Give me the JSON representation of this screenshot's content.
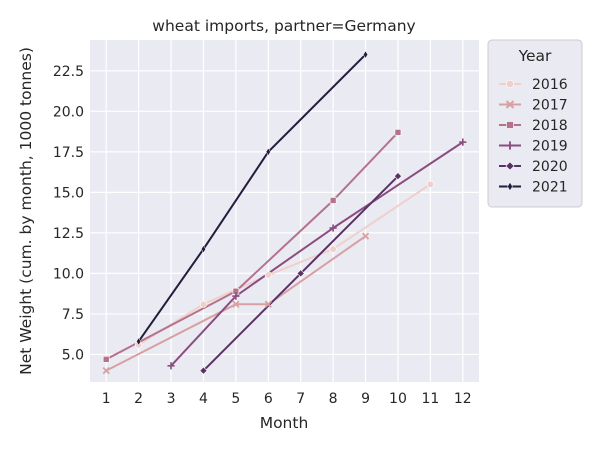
{
  "chart_data": {
    "type": "line",
    "title": "wheat imports, partner=Germany",
    "xlabel": "Month",
    "ylabel": "Net Weight (cum. by month, 1000 tonnes)",
    "xlim": [
      0.5,
      12.5
    ],
    "ylim": [
      3.3,
      24.4
    ],
    "xticks": [
      1,
      2,
      3,
      4,
      5,
      6,
      7,
      8,
      9,
      10,
      11,
      12
    ],
    "yticks": [
      5.0,
      7.5,
      10.0,
      12.5,
      15.0,
      17.5,
      20.0,
      22.5
    ],
    "ytick_labels": [
      "5.0",
      "7.5",
      "10.0",
      "12.5",
      "15.0",
      "17.5",
      "20.0",
      "22.5"
    ],
    "grid": true,
    "background": "#eaeaf2",
    "legend": {
      "title": "Year",
      "placement": "outside-right-top"
    },
    "series": [
      {
        "name": "2016",
        "color": "#efd0cb",
        "marker": "circle",
        "x": [
          2,
          4,
          6,
          8,
          11
        ],
        "y": [
          5.6,
          8.1,
          9.9,
          11.5,
          15.5
        ]
      },
      {
        "name": "2017",
        "color": "#d8a0a2",
        "marker": "x",
        "x": [
          1,
          5,
          6,
          9
        ],
        "y": [
          4.0,
          8.1,
          8.1,
          12.3
        ]
      },
      {
        "name": "2018",
        "color": "#b5728d",
        "marker": "square",
        "x": [
          1,
          5,
          8,
          10
        ],
        "y": [
          4.7,
          8.9,
          14.5,
          18.7
        ]
      },
      {
        "name": "2019",
        "color": "#8b4d80",
        "marker": "plus",
        "x": [
          3,
          5,
          8,
          12
        ],
        "y": [
          4.3,
          8.6,
          12.8,
          18.1
        ]
      },
      {
        "name": "2020",
        "color": "#5a3163",
        "marker": "diamond",
        "x": [
          4,
          7,
          10
        ],
        "y": [
          4.0,
          10.0,
          16.0
        ]
      },
      {
        "name": "2021",
        "color": "#261b3d",
        "marker": "thin-diamond",
        "x": [
          2,
          4,
          6,
          9
        ],
        "y": [
          5.8,
          11.5,
          17.5,
          23.5
        ]
      }
    ]
  }
}
